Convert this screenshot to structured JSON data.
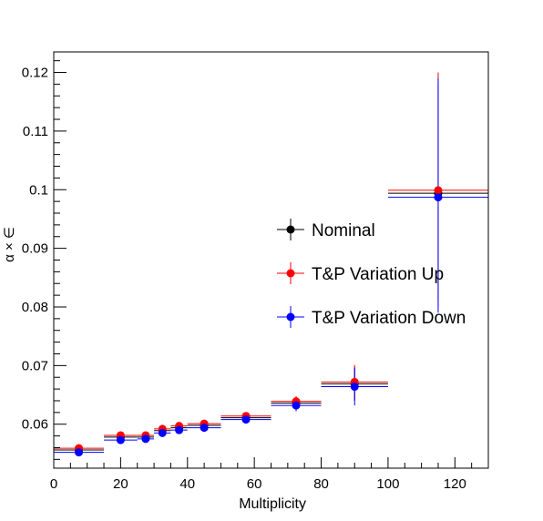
{
  "chart_data": {
    "type": "scatter",
    "title": "",
    "xlabel": "Multiplicity",
    "ylabel": "α × ∈",
    "xlim": [
      0,
      130
    ],
    "ylim": [
      0.0525,
      0.1235
    ],
    "x_ticks": [
      {
        "value": 0,
        "label": "0"
      },
      {
        "value": 20,
        "label": "20"
      },
      {
        "value": 40,
        "label": "40"
      },
      {
        "value": 60,
        "label": "60"
      },
      {
        "value": 80,
        "label": "80"
      },
      {
        "value": 100,
        "label": "100"
      },
      {
        "value": 120,
        "label": "120"
      }
    ],
    "y_ticks": [
      {
        "value": 0.06,
        "label": "0.06"
      },
      {
        "value": 0.07,
        "label": "0.07"
      },
      {
        "value": 0.08,
        "label": "0.08"
      },
      {
        "value": 0.09,
        "label": "0.09"
      },
      {
        "value": 0.1,
        "label": "0.1"
      },
      {
        "value": 0.11,
        "label": "0.11"
      },
      {
        "value": 0.12,
        "label": "0.12"
      }
    ],
    "grid": false,
    "legend_position": "center-right",
    "series": [
      {
        "name": "Nominal",
        "color": "#000000",
        "points": [
          {
            "x": 7.5,
            "xlo": 0,
            "xhi": 15,
            "y": 0.0556,
            "ylo": 0.0553,
            "yhi": 0.0559
          },
          {
            "x": 20,
            "xlo": 15,
            "xhi": 25,
            "y": 0.0578,
            "ylo": 0.0575,
            "yhi": 0.0581
          },
          {
            "x": 27.5,
            "xlo": 25,
            "xhi": 30,
            "y": 0.0578,
            "ylo": 0.0575,
            "yhi": 0.0581
          },
          {
            "x": 32.5,
            "xlo": 30,
            "xhi": 35,
            "y": 0.0589,
            "ylo": 0.0586,
            "yhi": 0.0593
          },
          {
            "x": 37.5,
            "xlo": 35,
            "xhi": 40,
            "y": 0.0594,
            "ylo": 0.0591,
            "yhi": 0.0598
          },
          {
            "x": 45,
            "xlo": 40,
            "xhi": 50,
            "y": 0.0598,
            "ylo": 0.0594,
            "yhi": 0.0602
          },
          {
            "x": 57.5,
            "xlo": 50,
            "xhi": 65,
            "y": 0.0611,
            "ylo": 0.0607,
            "yhi": 0.0615
          },
          {
            "x": 72.5,
            "xlo": 65,
            "xhi": 80,
            "y": 0.0636,
            "ylo": 0.0626,
            "yhi": 0.0645
          },
          {
            "x": 90,
            "xlo": 80,
            "xhi": 100,
            "y": 0.0669,
            "ylo": 0.064,
            "yhi": 0.0698
          },
          {
            "x": 115,
            "xlo": 100,
            "xhi": 130,
            "y": 0.0994,
            "ylo": 0.081,
            "yhi": 0.118
          }
        ]
      },
      {
        "name": "T&P Variation Up",
        "color": "#ff0000",
        "points": [
          {
            "x": 7.5,
            "xlo": 0,
            "xhi": 15,
            "y": 0.0559,
            "ylo": 0.0556,
            "yhi": 0.0562
          },
          {
            "x": 20,
            "xlo": 15,
            "xhi": 25,
            "y": 0.0581,
            "ylo": 0.0578,
            "yhi": 0.0584
          },
          {
            "x": 27.5,
            "xlo": 25,
            "xhi": 30,
            "y": 0.0581,
            "ylo": 0.0578,
            "yhi": 0.0584
          },
          {
            "x": 32.5,
            "xlo": 30,
            "xhi": 35,
            "y": 0.0592,
            "ylo": 0.0589,
            "yhi": 0.0596
          },
          {
            "x": 37.5,
            "xlo": 35,
            "xhi": 40,
            "y": 0.0597,
            "ylo": 0.0594,
            "yhi": 0.0601
          },
          {
            "x": 45,
            "xlo": 40,
            "xhi": 50,
            "y": 0.0601,
            "ylo": 0.0597,
            "yhi": 0.0605
          },
          {
            "x": 57.5,
            "xlo": 50,
            "xhi": 65,
            "y": 0.0614,
            "ylo": 0.061,
            "yhi": 0.0618
          },
          {
            "x": 72.5,
            "xlo": 65,
            "xhi": 80,
            "y": 0.0639,
            "ylo": 0.0629,
            "yhi": 0.0648
          },
          {
            "x": 90,
            "xlo": 80,
            "xhi": 100,
            "y": 0.0672,
            "ylo": 0.0643,
            "yhi": 0.0701
          },
          {
            "x": 115,
            "xlo": 100,
            "xhi": 130,
            "y": 0.0999,
            "ylo": 0.08,
            "yhi": 0.12
          }
        ]
      },
      {
        "name": "T&P Variation Down",
        "color": "#0000ff",
        "points": [
          {
            "x": 7.5,
            "xlo": 0,
            "xhi": 15,
            "y": 0.0552,
            "ylo": 0.0549,
            "yhi": 0.0555
          },
          {
            "x": 20,
            "xlo": 15,
            "xhi": 25,
            "y": 0.0573,
            "ylo": 0.057,
            "yhi": 0.0576
          },
          {
            "x": 27.5,
            "xlo": 25,
            "xhi": 30,
            "y": 0.0575,
            "ylo": 0.0572,
            "yhi": 0.0578
          },
          {
            "x": 32.5,
            "xlo": 30,
            "xhi": 35,
            "y": 0.0585,
            "ylo": 0.0582,
            "yhi": 0.0589
          },
          {
            "x": 37.5,
            "xlo": 35,
            "xhi": 40,
            "y": 0.059,
            "ylo": 0.0587,
            "yhi": 0.0594
          },
          {
            "x": 45,
            "xlo": 40,
            "xhi": 50,
            "y": 0.0594,
            "ylo": 0.059,
            "yhi": 0.0598
          },
          {
            "x": 57.5,
            "xlo": 50,
            "xhi": 65,
            "y": 0.0608,
            "ylo": 0.0604,
            "yhi": 0.0612
          },
          {
            "x": 72.5,
            "xlo": 65,
            "xhi": 80,
            "y": 0.0632,
            "ylo": 0.0622,
            "yhi": 0.0641
          },
          {
            "x": 90,
            "xlo": 80,
            "xhi": 100,
            "y": 0.0664,
            "ylo": 0.0632,
            "yhi": 0.0696
          },
          {
            "x": 115,
            "xlo": 100,
            "xhi": 130,
            "y": 0.0987,
            "ylo": 0.079,
            "yhi": 0.119
          }
        ]
      }
    ]
  }
}
